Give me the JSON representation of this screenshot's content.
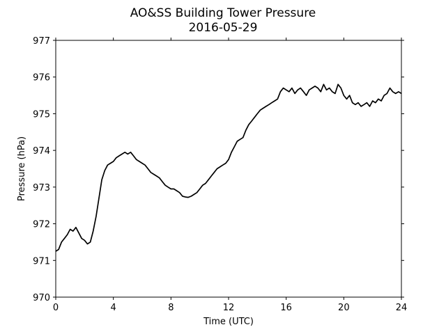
{
  "chart_data": {
    "type": "line",
    "title": "AO&SS Building Tower Pressure",
    "subtitle": "2016-05-29",
    "xlabel": "Time (UTC)",
    "ylabel": "Pressure (hPa)",
    "xlim": [
      0,
      24
    ],
    "ylim": [
      970,
      977
    ],
    "xticks": [
      0,
      4,
      8,
      12,
      16,
      20,
      24
    ],
    "yticks": [
      970,
      971,
      972,
      973,
      974,
      975,
      976,
      977
    ],
    "grid": false,
    "line_color": "#000000",
    "series": [
      {
        "x": [
          0.0,
          0.2,
          0.4,
          0.6,
          0.8,
          1.0,
          1.2,
          1.4,
          1.6,
          1.8,
          2.0,
          2.2,
          2.4,
          2.6,
          2.8,
          3.0,
          3.2,
          3.4,
          3.6,
          3.8,
          4.0,
          4.2,
          4.4,
          4.6,
          4.8,
          5.0,
          5.2,
          5.4,
          5.6,
          5.8,
          6.0,
          6.2,
          6.4,
          6.6,
          6.8,
          7.0,
          7.2,
          7.4,
          7.6,
          7.8,
          8.0,
          8.2,
          8.4,
          8.6,
          8.8,
          9.0,
          9.2,
          9.4,
          9.6,
          9.8,
          10.0,
          10.2,
          10.4,
          10.6,
          10.8,
          11.0,
          11.2,
          11.4,
          11.6,
          11.8,
          12.0,
          12.2,
          12.4,
          12.6,
          12.8,
          13.0,
          13.2,
          13.4,
          13.6,
          13.8,
          14.0,
          14.2,
          14.4,
          14.6,
          14.8,
          15.0,
          15.2,
          15.4,
          15.6,
          15.8,
          16.0,
          16.2,
          16.4,
          16.6,
          16.8,
          17.0,
          17.2,
          17.4,
          17.6,
          17.8,
          18.0,
          18.2,
          18.4,
          18.6,
          18.8,
          19.0,
          19.2,
          19.4,
          19.6,
          19.8,
          20.0,
          20.2,
          20.4,
          20.6,
          20.8,
          21.0,
          21.2,
          21.4,
          21.6,
          21.8,
          22.0,
          22.2,
          22.4,
          22.6,
          22.8,
          23.0,
          23.2,
          23.4,
          23.6,
          23.8,
          24.0
        ],
        "y": [
          971.25,
          971.3,
          971.5,
          971.6,
          971.7,
          971.85,
          971.8,
          971.9,
          971.75,
          971.6,
          971.55,
          971.45,
          971.5,
          971.8,
          972.2,
          972.7,
          973.2,
          973.45,
          973.6,
          973.65,
          973.7,
          973.8,
          973.85,
          973.9,
          973.95,
          973.9,
          973.95,
          973.85,
          973.75,
          973.7,
          973.65,
          973.6,
          973.5,
          973.4,
          973.35,
          973.3,
          973.25,
          973.15,
          973.05,
          973.0,
          972.95,
          972.95,
          972.9,
          972.85,
          972.75,
          972.73,
          972.72,
          972.75,
          972.8,
          972.85,
          972.95,
          973.05,
          973.1,
          973.2,
          973.3,
          973.4,
          973.5,
          973.55,
          973.6,
          973.65,
          973.75,
          973.95,
          974.1,
          974.25,
          974.3,
          974.35,
          974.55,
          974.7,
          974.8,
          974.9,
          975.0,
          975.1,
          975.15,
          975.2,
          975.25,
          975.3,
          975.35,
          975.4,
          975.6,
          975.7,
          975.65,
          975.6,
          975.7,
          975.55,
          975.65,
          975.7,
          975.6,
          975.5,
          975.65,
          975.7,
          975.75,
          975.7,
          975.6,
          975.8,
          975.65,
          975.7,
          975.6,
          975.55,
          975.8,
          975.7,
          975.5,
          975.4,
          975.5,
          975.3,
          975.25,
          975.3,
          975.2,
          975.25,
          975.3,
          975.2,
          975.35,
          975.3,
          975.4,
          975.35,
          975.5,
          975.55,
          975.7,
          975.6,
          975.55,
          975.6,
          975.55
        ]
      }
    ]
  }
}
